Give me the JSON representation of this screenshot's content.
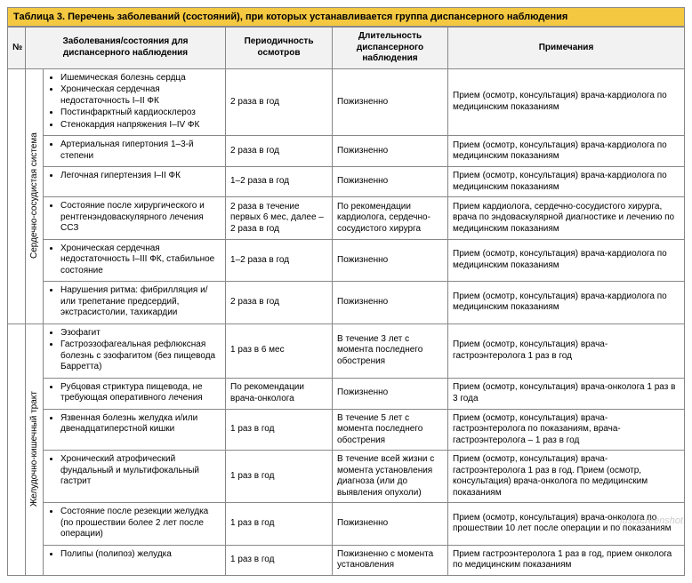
{
  "title": "Таблица 3. Перечень заболеваний (состояний), при которых устанавливается группа диспансерного наблюдения",
  "columns": {
    "num": "№",
    "disease": "Заболевания/состояния для диспансерного наблюдения",
    "period": "Периодичность осмотров",
    "duration": "Длительность диспансерного наблюдения",
    "notes": "Примечания"
  },
  "categories": [
    {
      "label": "Сердечно-сосудистая система",
      "rows": [
        {
          "items": [
            "Ишемическая болезнь сердца",
            "Хроническая сердечная недостаточность I–II ФК",
            "Постинфарктный кардиосклероз",
            "Стенокардия напряжения I–IV ФК"
          ],
          "period": "2 раза в год",
          "duration": "Пожизненно",
          "notes": "Прием (осмотр, консультация) врача-кардиолога по медицинским показаниям"
        },
        {
          "items": [
            "Артериальная гипертония 1–3-й степени"
          ],
          "period": "2 раза в год",
          "duration": "Пожизненно",
          "notes": "Прием (осмотр, консультация) врача-кардиолога по медицинским показаниям"
        },
        {
          "items": [
            "Легочная гипертензия I–II ФК"
          ],
          "period": "1–2 раза в год",
          "duration": "Пожизненно",
          "notes": "Прием (осмотр, консультация) врача-кардиолога по медицинским показаниям"
        },
        {
          "items": [
            "Состояние после хирургического и рентгенэндоваскулярного лечения ССЗ"
          ],
          "period": "2 раза в течение первых 6 мес, далее – 2 раза в год",
          "duration": "По рекомендации кардиолога, сердечно-сосудистого хирурга",
          "notes": "Прием кардиолога, сердечно-сосудистого хирурга, врача по эндоваскулярной диагностике и лечению по медицинским показаниям"
        },
        {
          "items": [
            "Хроническая сердечная недостаточность I–III ФК, стабильное состояние"
          ],
          "period": "1–2 раза в год",
          "duration": "Пожизненно",
          "notes": "Прием (осмотр, консультация) врача-кардиолога по медицинским показаниям"
        },
        {
          "items": [
            "Нарушения ритма: фибрилляция и/или трепетание предсердий, экстрасистолии, тахикардии"
          ],
          "period": "2 раза в год",
          "duration": "Пожизненно",
          "notes": "Прием (осмотр, консультация) врача-кардиолога по медицинским показаниям"
        }
      ]
    },
    {
      "label": "Желудочно-кишечный тракт",
      "rows": [
        {
          "items": [
            "Эзофагит",
            "Гастроэзофагеальная рефлюксная болезнь с эзофагитом (без пищевода Барретта)"
          ],
          "period": "1 раз в 6 мес",
          "duration": "В течение 3 лет с момента последнего обострения",
          "notes": "Прием (осмотр, консультация) врача-гастроэнтеролога 1 раз в год"
        },
        {
          "items": [
            "Рубцовая стриктура пищевода, не требующая оперативного лечения"
          ],
          "period": "По рекомендации врача-онколога",
          "duration": "Пожизненно",
          "notes": "Прием (осмотр, консультация) врача-онколога 1 раз в 3 года"
        },
        {
          "items": [
            "Язвенная болезнь желудка и/или двенадцатиперстной кишки"
          ],
          "period": "1 раз в год",
          "duration": "В течение 5 лет с момента последнего обострения",
          "notes": "Прием (осмотр, консультация) врача-гастроэнтеролога по показаниям, врача-гастроэнтеролога – 1 раз в год"
        },
        {
          "items": [
            "Хронический атрофический фундальный и мультифокальный гастрит"
          ],
          "period": "1 раз в год",
          "duration": "В течение всей жизни с момента установления диагноза (или до выявления опухоли)",
          "notes": "Прием (осмотр, консультация) врача-гастроэнтеролога 1 раз в год. Прием (осмотр, консультация) врача-онколога по медицинским показаниям"
        },
        {
          "items": [
            "Состояние после резекции желудка (по прошествии более 2 лет после операции)"
          ],
          "period": "1 раз в год",
          "duration": "Пожизненно",
          "notes": "Прием (осмотр, консультация) врача-онколога по прошествии 10 лет после операции и по показаниям"
        },
        {
          "items": [
            "Полипы (полипоз) желудка"
          ],
          "period": "1 раз в год",
          "duration": "Пожизненно с момента установления",
          "notes": "Прием гастроэнтеролога 1 раз в год, прием онколога по медицинским показаниям"
        }
      ]
    }
  ],
  "watermark": "justscreenshot",
  "style": {
    "title_bg": "#f5c842",
    "header_bg": "#f2f2f2",
    "border_color": "#888888",
    "font_size_body": 10,
    "font_size_title": 11
  }
}
